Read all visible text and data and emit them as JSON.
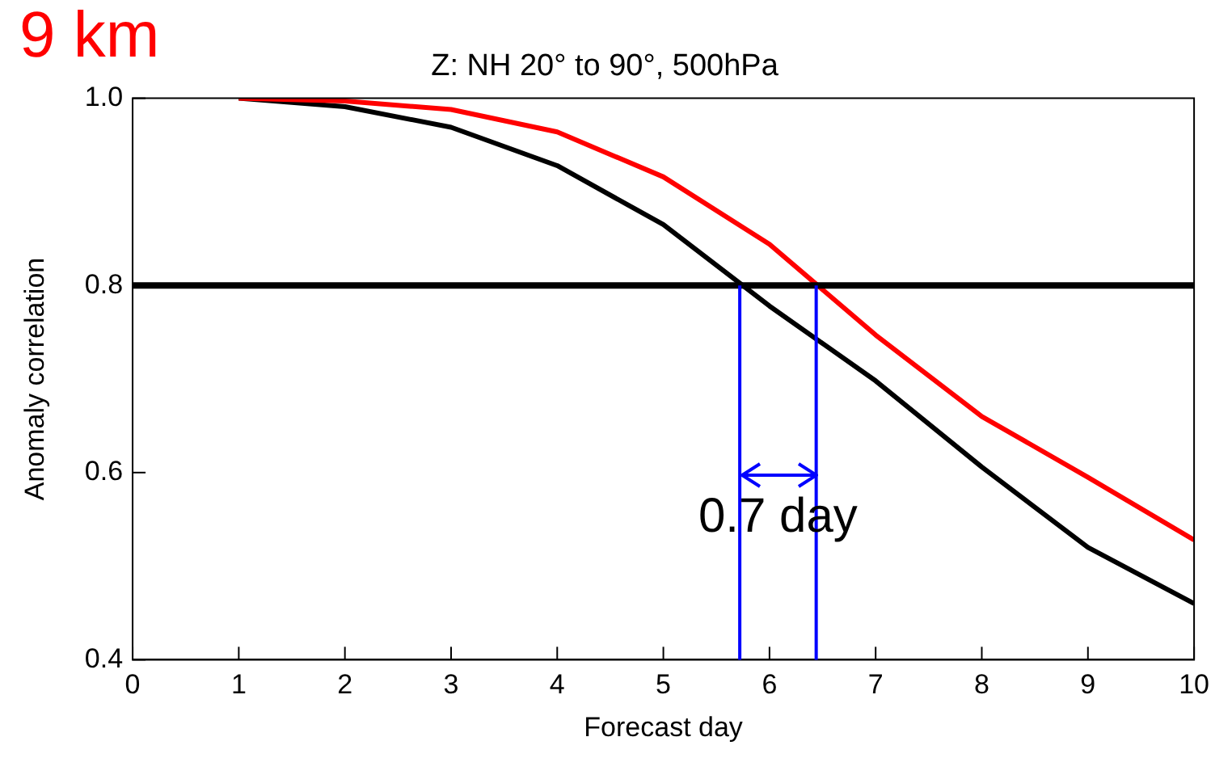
{
  "chart_data": {
    "type": "line",
    "title": "Z: NH 20° to 90°, 500hPa",
    "xlabel": "Forecast day",
    "ylabel": "Anomaly correlation",
    "x": [
      1,
      2,
      3,
      4,
      5,
      6,
      7,
      8,
      9,
      10
    ],
    "series": [
      {
        "color": "#ff0000",
        "values": [
          1.0,
          0.997,
          0.988,
          0.964,
          0.916,
          0.844,
          0.747,
          0.66,
          0.595,
          0.528
        ]
      },
      {
        "color": "#000000",
        "values": [
          1.0,
          0.991,
          0.969,
          0.928,
          0.865,
          0.778,
          0.698,
          0.606,
          0.52,
          0.46
        ]
      }
    ],
    "xlim": [
      0,
      10
    ],
    "xticks": [
      0,
      1,
      2,
      3,
      4,
      5,
      6,
      7,
      8,
      9,
      10
    ],
    "ylim": [
      0.4,
      1.0
    ],
    "yticks": [
      0.4,
      0.6,
      0.8,
      {
        "value": 1.0,
        "label": "1.0"
      }
    ],
    "ref_lines": [
      {
        "axis": "y",
        "value": 0.8,
        "color": "#000000"
      },
      {
        "axis": "x",
        "value": 5.72,
        "color": "#0000ff"
      },
      {
        "axis": "x",
        "value": 6.44,
        "color": "#0000ff"
      }
    ],
    "annotations": [
      "9 km",
      "0.7 day"
    ],
    "grid": false,
    "legend": false,
    "marker": "none",
    "line_style": "solid"
  }
}
